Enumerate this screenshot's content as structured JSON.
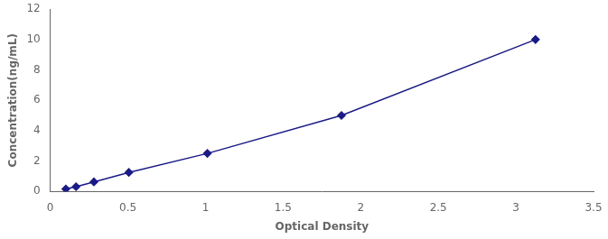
{
  "chart_data": {
    "type": "line",
    "x": [
      0.1,
      0.166,
      0.281,
      0.506,
      1.012,
      1.876,
      3.126
    ],
    "values": [
      0.156,
      0.312,
      0.625,
      1.25,
      2.5,
      5.0,
      10.0
    ],
    "color": "#1a1a8c",
    "marker": "diamond",
    "line_style": "solid",
    "xlabel": "Optical Density",
    "ylabel": "Concentration(ng/mL)",
    "xlim": [
      0,
      3.5
    ],
    "xticks": [
      0,
      0.5,
      1,
      1.5,
      2,
      2.5,
      3,
      3.5
    ],
    "ylim": [
      0,
      12
    ],
    "yticks": [
      0,
      2,
      4,
      6,
      8,
      10,
      12
    ],
    "grid": false
  }
}
